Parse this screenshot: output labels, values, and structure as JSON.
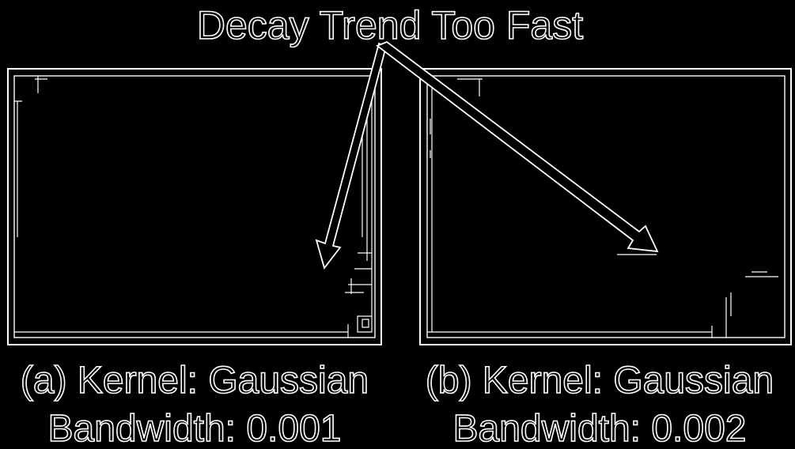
{
  "title": "Decay Trend Too Fast",
  "panels": [
    {
      "caption_line1": "(a) Kernel: Gaussian",
      "caption_line2": "Bandwidth: 0.001"
    },
    {
      "caption_line1": "(b) Kernel: Gaussian",
      "caption_line2": "Bandwidth: 0.002"
    }
  ],
  "colors": {
    "background": "#000000",
    "stroke": "#ffffff"
  },
  "icons": {
    "arrow": "arrow-down-icon"
  }
}
